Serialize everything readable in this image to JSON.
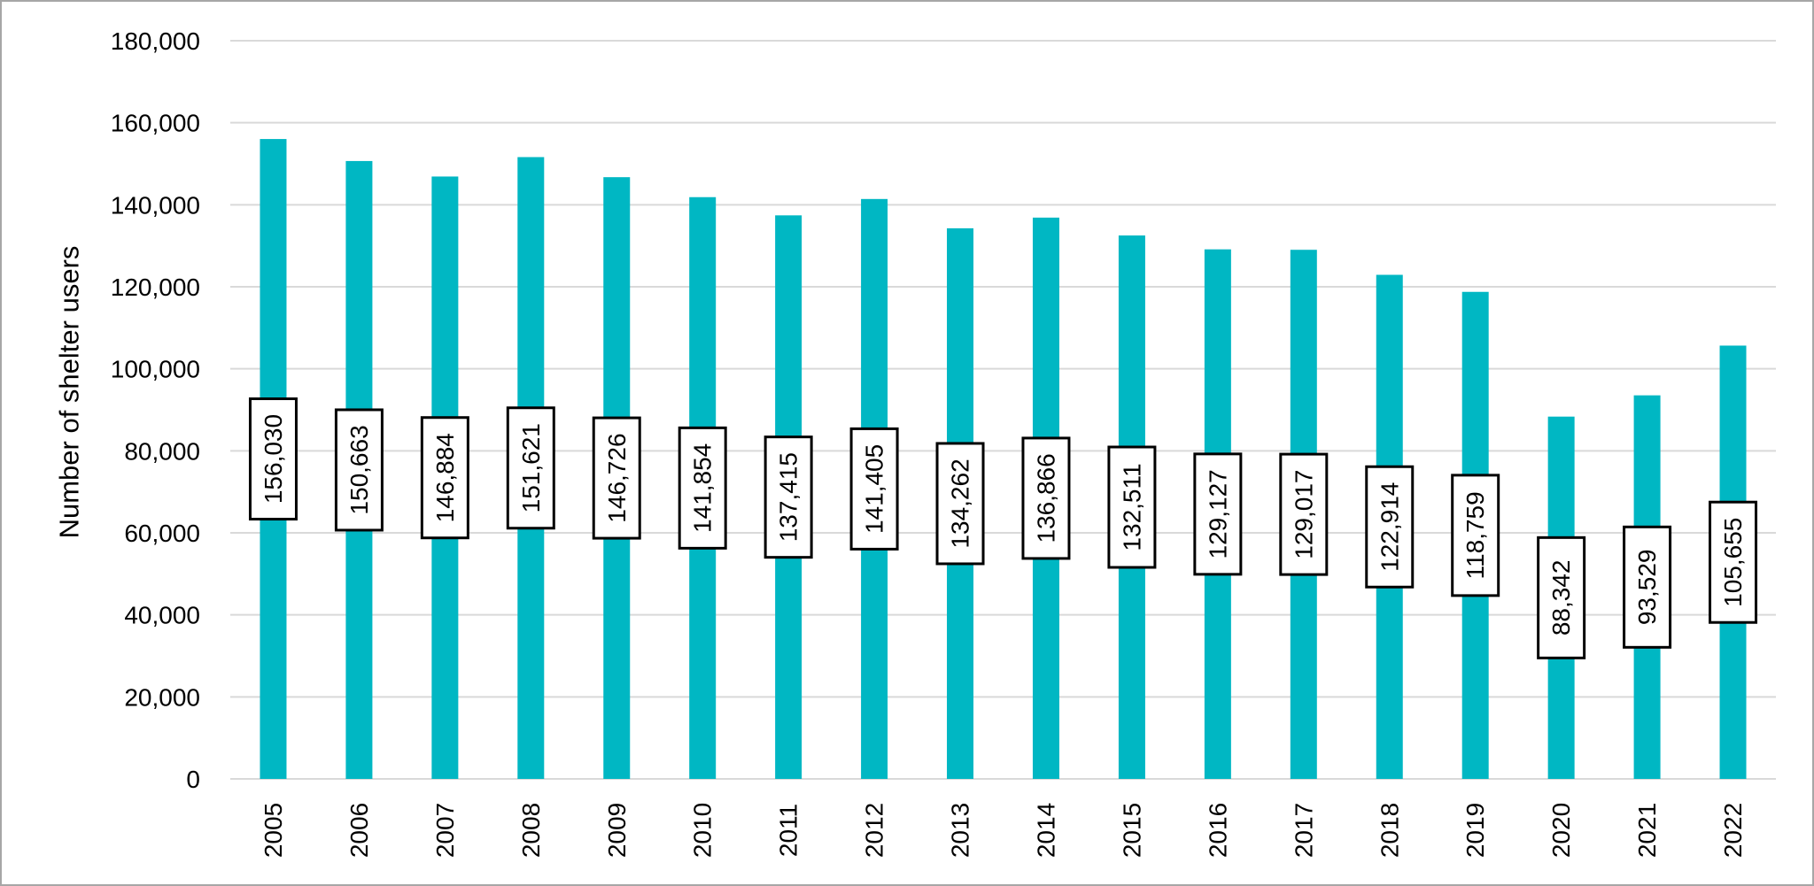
{
  "chart_data": {
    "type": "bar",
    "title": "",
    "xlabel": "",
    "ylabel": "Number of shelter users",
    "ylim": [
      0,
      180000
    ],
    "yticks": [
      0,
      20000,
      40000,
      60000,
      80000,
      100000,
      120000,
      140000,
      160000,
      180000
    ],
    "ytick_labels": [
      "0",
      "20,000",
      "40,000",
      "60,000",
      "80,000",
      "100,000",
      "120,000",
      "140,000",
      "160,000",
      "180,000"
    ],
    "grid": true,
    "legend": "none",
    "bar_color": "#00b7c3",
    "categories": [
      "2005",
      "2006",
      "2007",
      "2008",
      "2009",
      "2010",
      "2011",
      "2012",
      "2013",
      "2014",
      "2015",
      "2016",
      "2017",
      "2018",
      "2019",
      "2020",
      "2021",
      "2022"
    ],
    "values": [
      156030,
      150663,
      146884,
      151621,
      146726,
      141854,
      137415,
      141405,
      134262,
      136866,
      132511,
      129127,
      129017,
      122914,
      118759,
      88342,
      93529,
      105655
    ],
    "value_labels": [
      "156,030",
      "150,663",
      "146,884",
      "151,621",
      "146,726",
      "141,854",
      "137,415",
      "141,405",
      "134,262",
      "136,866",
      "132,511",
      "129,127",
      "129,017",
      "122,914",
      "118,759",
      "88,342",
      "93,529",
      "105,655"
    ]
  }
}
